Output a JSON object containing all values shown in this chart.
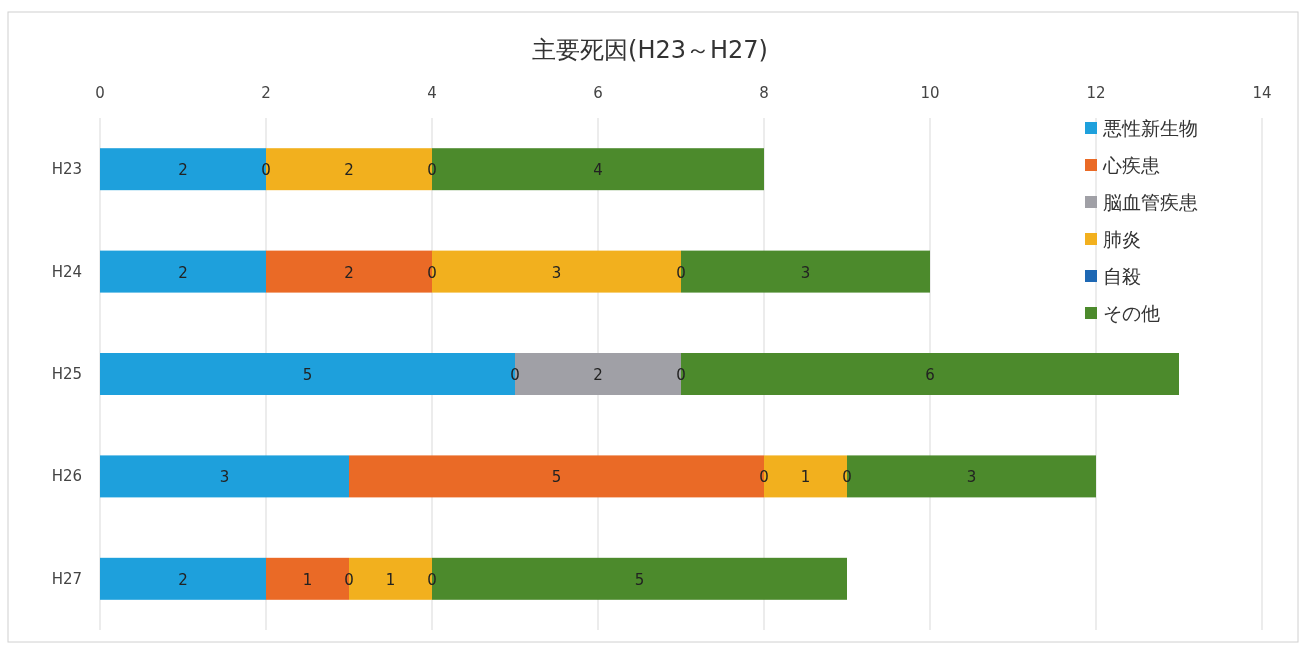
{
  "chart_data": {
    "type": "bar",
    "orientation": "horizontal",
    "stacked": true,
    "title": "主要死因(H23～H27)",
    "categories": [
      "H23",
      "H24",
      "H25",
      "H26",
      "H27"
    ],
    "series": [
      {
        "name": "悪性新生物",
        "color": "#1ea0dc",
        "values": [
          2,
          2,
          5,
          3,
          2
        ]
      },
      {
        "name": "心疾患",
        "color": "#ea6a26",
        "values": [
          0,
          2,
          0,
          5,
          1
        ]
      },
      {
        "name": "脳血管疾患",
        "color": "#a0a0a6",
        "values": [
          null,
          0,
          2,
          0,
          0
        ]
      },
      {
        "name": "肺炎",
        "color": "#f2b01e",
        "values": [
          2,
          3,
          null,
          1,
          1
        ]
      },
      {
        "name": "自殺",
        "color": "#1e68b4",
        "values": [
          0,
          0,
          0,
          0,
          0
        ]
      },
      {
        "name": "その他",
        "color": "#4c8a2c",
        "values": [
          4,
          3,
          6,
          3,
          5
        ]
      }
    ],
    "xlim": [
      0,
      14
    ],
    "xticks": [
      0,
      2,
      4,
      6,
      8,
      10,
      12,
      14
    ],
    "grid": "x",
    "legend": "top right",
    "data_labels": true
  }
}
